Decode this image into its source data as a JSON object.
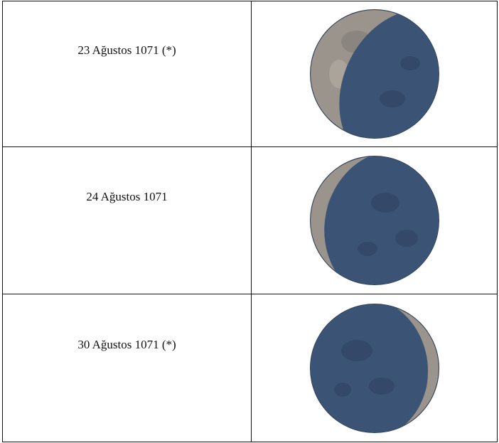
{
  "table": {
    "rows": [
      {
        "date": "23 Ağustos 1071 (*)",
        "moon_icon": "waning-crescent-moon-icon",
        "illuminated_side": "left",
        "illumination_fraction": 0.22
      },
      {
        "date": "24 Ağustos 1071",
        "moon_icon": "waning-crescent-moon-icon",
        "illuminated_side": "left",
        "illumination_fraction": 0.12
      },
      {
        "date": "30 Ağustos 1071 (*)",
        "moon_icon": "waxing-crescent-moon-icon",
        "illuminated_side": "right",
        "illumination_fraction": 0.06
      }
    ]
  },
  "colors": {
    "shadow": "#3b5475",
    "lit": "#9a948c",
    "outline": "#2c3e57",
    "border": "#111111"
  }
}
